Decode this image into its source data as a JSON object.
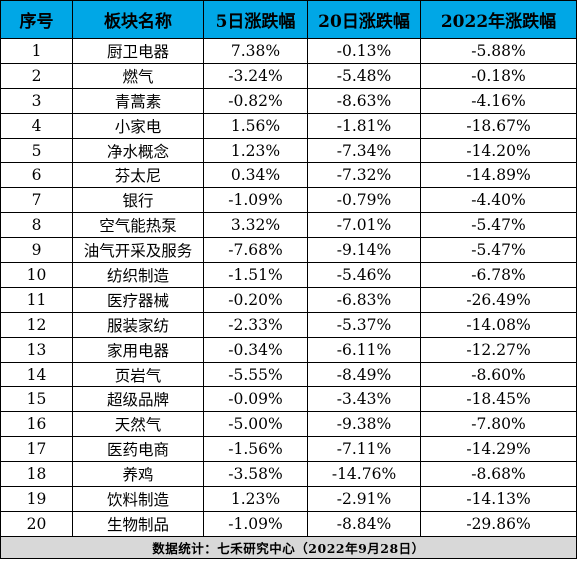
{
  "table": {
    "headers": [
      "序号",
      "板块名称",
      "5日涨跌幅",
      "20日涨跌幅",
      "2022年涨跌幅"
    ],
    "rows": [
      [
        "1",
        "厨卫电器",
        "7.38%",
        "-0.13%",
        "-5.88%"
      ],
      [
        "2",
        "燃气",
        "-3.24%",
        "-5.48%",
        "-0.18%"
      ],
      [
        "3",
        "青蒿素",
        "-0.82%",
        "-8.63%",
        "-4.16%"
      ],
      [
        "4",
        "小家电",
        "1.56%",
        "-1.81%",
        "-18.67%"
      ],
      [
        "5",
        "净水概念",
        "1.23%",
        "-7.34%",
        "-14.20%"
      ],
      [
        "6",
        "芬太尼",
        "0.34%",
        "-7.32%",
        "-14.89%"
      ],
      [
        "7",
        "银行",
        "-1.09%",
        "-0.79%",
        "-4.40%"
      ],
      [
        "8",
        "空气能热泵",
        "3.32%",
        "-7.01%",
        "-5.47%"
      ],
      [
        "9",
        "油气开采及服务",
        "-7.68%",
        "-9.14%",
        "-5.47%"
      ],
      [
        "10",
        "纺织制造",
        "-1.51%",
        "-5.46%",
        "-6.78%"
      ],
      [
        "11",
        "医疗器械",
        "-0.20%",
        "-6.83%",
        "-26.49%"
      ],
      [
        "12",
        "服装家纺",
        "-2.33%",
        "-5.37%",
        "-14.08%"
      ],
      [
        "13",
        "家用电器",
        "-0.34%",
        "-6.11%",
        "-12.27%"
      ],
      [
        "14",
        "页岩气",
        "-5.55%",
        "-8.49%",
        "-8.60%"
      ],
      [
        "15",
        "超级品牌",
        "-0.09%",
        "-3.43%",
        "-18.45%"
      ],
      [
        "16",
        "天然气",
        "-5.00%",
        "-9.38%",
        "-7.80%"
      ],
      [
        "17",
        "医药电商",
        "-1.56%",
        "-7.11%",
        "-14.29%"
      ],
      [
        "18",
        "养鸡",
        "-3.58%",
        "-14.76%",
        "-8.68%"
      ],
      [
        "19",
        "饮料制造",
        "1.23%",
        "-2.91%",
        "-14.13%"
      ],
      [
        "20",
        "生物制品",
        "-1.09%",
        "-8.84%",
        "-29.86%"
      ]
    ],
    "footer": "数据统计：七禾研究中心（2022年9月28日）"
  },
  "colors": {
    "header_bg": "#00a7e6",
    "footer_bg": "#d8d8d8",
    "border": "#000000"
  }
}
